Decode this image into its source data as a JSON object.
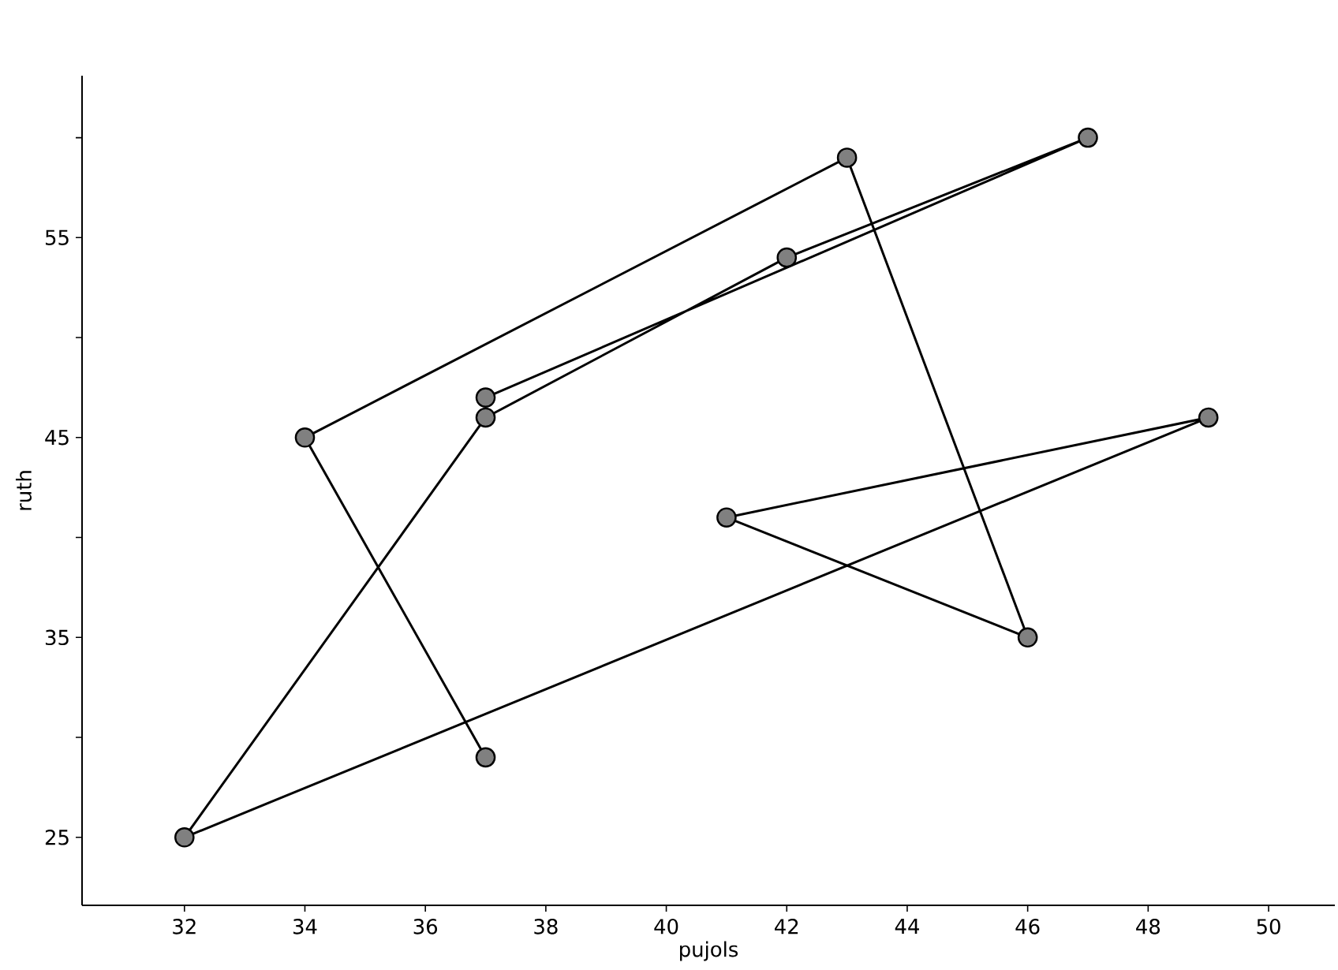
{
  "chart_data": {
    "type": "line",
    "xlabel": "pujols",
    "ylabel": "ruth",
    "x": [
      37,
      34,
      43,
      46,
      41,
      49,
      32,
      37,
      42,
      47,
      37
    ],
    "series": [
      {
        "color": "#000000",
        "values": [
          29,
          45,
          59,
          35,
          41,
          46,
          25,
          46,
          54,
          60,
          47
        ]
      }
    ],
    "xlim": [
      30.3,
      51.1
    ],
    "ylim": [
      21.6,
      63.1
    ],
    "xticks": [
      32,
      34,
      36,
      38,
      40,
      42,
      44,
      46,
      48,
      50
    ],
    "yticks": [
      25,
      {
        "value": 30,
        "label": null
      },
      35,
      {
        "value": 40,
        "label": null
      },
      45,
      {
        "value": 50,
        "label": null
      },
      55,
      {
        "value": 60,
        "label": null
      }
    ],
    "marker": "circle",
    "line_style": "solid",
    "grid": false
  }
}
